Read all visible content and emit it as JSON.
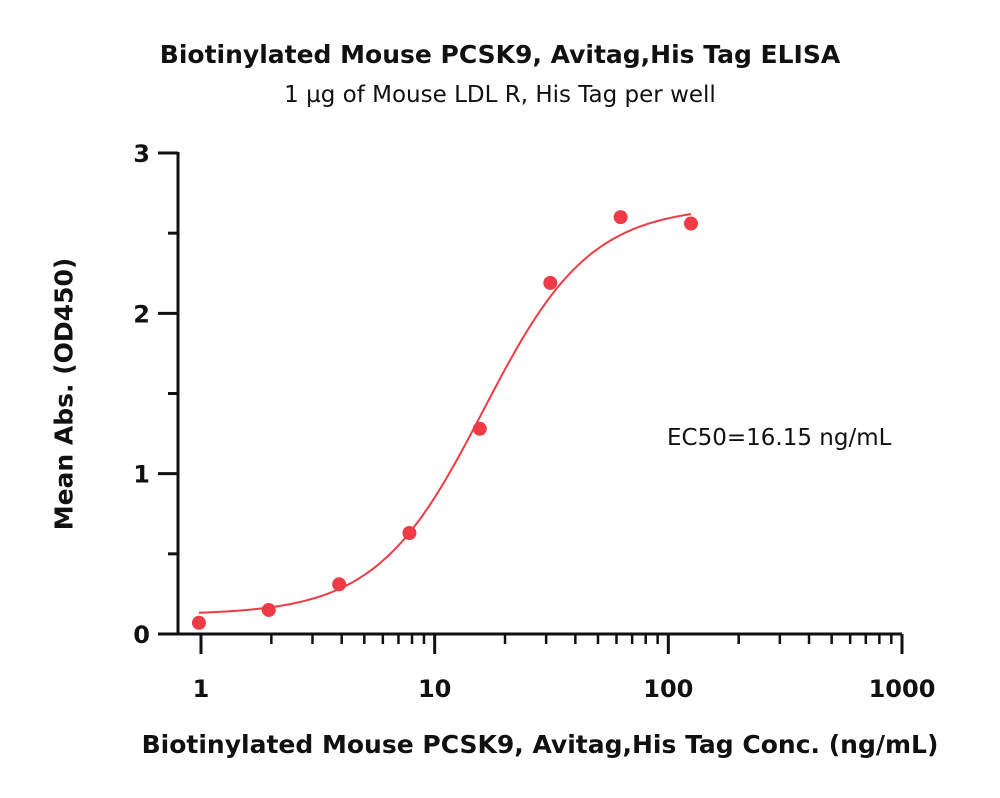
{
  "chart_data": {
    "type": "scatter",
    "title": "Biotinylated Mouse PCSK9, Avitag,His Tag ELISA",
    "subtitle": "1 µg of Mouse LDL R, His Tag per well",
    "xlabel": "Biotinylated Mouse PCSK9, Avitag,His Tag Conc. (ng/mL)",
    "ylabel": "Mean Abs. (OD450)",
    "x_scale": "log",
    "xlim": [
      1,
      1000
    ],
    "ylim": [
      0,
      3
    ],
    "x_ticks": [
      "1",
      "10",
      "100",
      "1000"
    ],
    "y_ticks": [
      "0",
      "1",
      "2",
      "3"
    ],
    "grid": false,
    "series": [
      {
        "x": [
          0.98,
          1.95,
          3.9,
          7.8,
          15.6,
          31.25,
          62.5,
          125
        ],
        "y": [
          0.07,
          0.15,
          0.31,
          0.63,
          1.28,
          2.19,
          2.6,
          2.56
        ]
      }
    ],
    "fit_curve": {
      "model": "4PL",
      "bottom": 0.12,
      "top": 2.67,
      "ec50": 16.15,
      "hill": 1.9
    },
    "annotation": "EC50=16.15 ng/mL",
    "colors": {
      "series": "#ef3b45",
      "axis": "#111111"
    }
  }
}
